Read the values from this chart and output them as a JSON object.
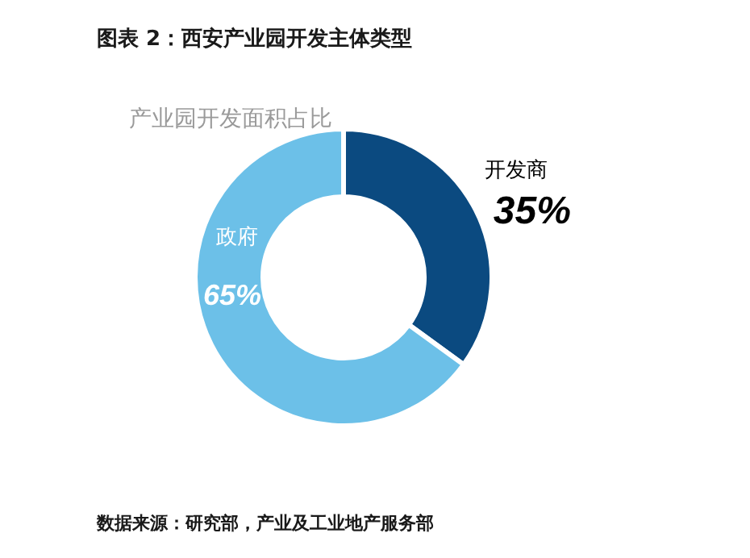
{
  "chart_data": {
    "type": "donut",
    "title": "图表 2：西安产业园开发主体类型",
    "subtitle": "产业园开发面积占比",
    "categories": [
      "开发商",
      "政府"
    ],
    "values": [
      35,
      65
    ],
    "colors": [
      "#0b4a80",
      "#6cc0e8"
    ],
    "value_labels": [
      "35%",
      "65%"
    ],
    "annotations": [
      "数据来源：研究部，产业及工业地产服务部"
    ]
  }
}
